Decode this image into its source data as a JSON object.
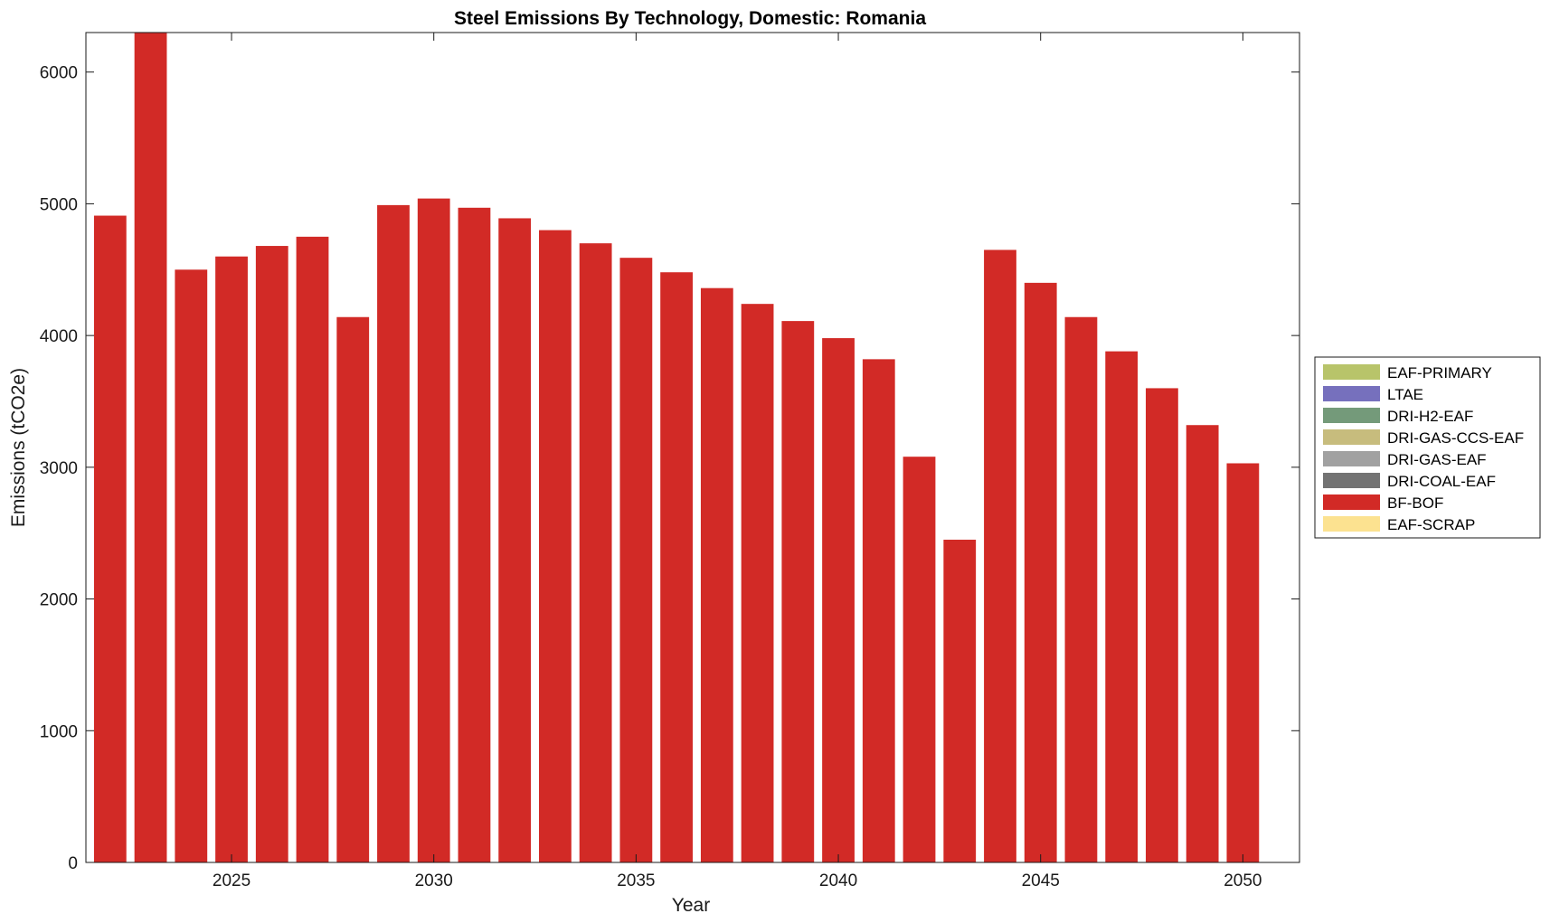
{
  "chart_data": {
    "type": "bar",
    "stacked": true,
    "title": "Steel Emissions By Technology, Domestic: Romania",
    "xlabel": "Year",
    "ylabel": "Emissions (tCO2e)",
    "xlim": [
      2021.4,
      2051.4
    ],
    "ylim": [
      0,
      6300
    ],
    "x_ticks": [
      2025,
      2030,
      2035,
      2040,
      2045,
      2050
    ],
    "y_ticks": [
      0,
      1000,
      2000,
      3000,
      4000,
      5000,
      6000
    ],
    "grid": false,
    "legend_position": "right",
    "categories": [
      2022,
      2023,
      2024,
      2025,
      2026,
      2027,
      2028,
      2029,
      2030,
      2031,
      2032,
      2033,
      2034,
      2035,
      2036,
      2037,
      2038,
      2039,
      2040,
      2041,
      2042,
      2043,
      2044,
      2045,
      2046,
      2047,
      2048,
      2049,
      2050
    ],
    "series": [
      {
        "name": "EAF-PRIMARY",
        "color": "#b8c46a",
        "values": [
          0,
          0,
          0,
          0,
          0,
          0,
          0,
          0,
          0,
          0,
          0,
          0,
          0,
          0,
          0,
          0,
          0,
          0,
          0,
          0,
          0,
          0,
          0,
          0,
          0,
          0,
          0,
          0,
          0
        ]
      },
      {
        "name": "LTAE",
        "color": "#7670bd",
        "values": [
          0,
          0,
          0,
          0,
          0,
          0,
          0,
          0,
          0,
          0,
          0,
          0,
          0,
          0,
          0,
          0,
          0,
          0,
          0,
          0,
          0,
          0,
          0,
          0,
          0,
          0,
          0,
          0,
          0
        ]
      },
      {
        "name": "DRI-H2-EAF",
        "color": "#749a7a",
        "values": [
          0,
          0,
          0,
          0,
          0,
          0,
          0,
          0,
          0,
          0,
          0,
          0,
          0,
          0,
          0,
          0,
          0,
          0,
          0,
          0,
          0,
          0,
          0,
          0,
          0,
          0,
          0,
          0,
          0
        ]
      },
      {
        "name": "DRI-GAS-CCS-EAF",
        "color": "#c7bc7d",
        "values": [
          0,
          0,
          0,
          0,
          0,
          0,
          0,
          0,
          0,
          0,
          0,
          0,
          0,
          0,
          0,
          0,
          0,
          0,
          0,
          0,
          0,
          0,
          0,
          0,
          0,
          0,
          0,
          0,
          0
        ]
      },
      {
        "name": "DRI-GAS-EAF",
        "color": "#a1a1a1",
        "values": [
          0,
          0,
          0,
          0,
          0,
          0,
          0,
          0,
          0,
          0,
          0,
          0,
          0,
          0,
          0,
          0,
          0,
          0,
          0,
          0,
          0,
          0,
          0,
          0,
          0,
          0,
          0,
          0,
          0
        ]
      },
      {
        "name": "DRI-COAL-EAF",
        "color": "#737373",
        "values": [
          0,
          0,
          0,
          0,
          0,
          0,
          0,
          0,
          0,
          0,
          0,
          0,
          0,
          0,
          0,
          0,
          0,
          0,
          0,
          0,
          0,
          0,
          0,
          0,
          0,
          0,
          0,
          0,
          0
        ]
      },
      {
        "name": "BF-BOF",
        "color": "#d22a26",
        "values": [
          4910,
          6300,
          4500,
          4600,
          4680,
          4750,
          4140,
          4990,
          5040,
          4970,
          4890,
          4800,
          4700,
          4590,
          4480,
          4360,
          4240,
          4110,
          3980,
          3820,
          3080,
          2450,
          4650,
          4400,
          4140,
          3880,
          3600,
          3320,
          3030
        ]
      },
      {
        "name": "EAF-SCRAP",
        "color": "#fce290",
        "values": [
          0,
          0,
          0,
          0,
          0,
          0,
          0,
          0,
          0,
          0,
          0,
          0,
          0,
          0,
          0,
          0,
          0,
          0,
          0,
          0,
          0,
          0,
          0,
          0,
          0,
          0,
          0,
          0,
          0
        ]
      }
    ]
  }
}
